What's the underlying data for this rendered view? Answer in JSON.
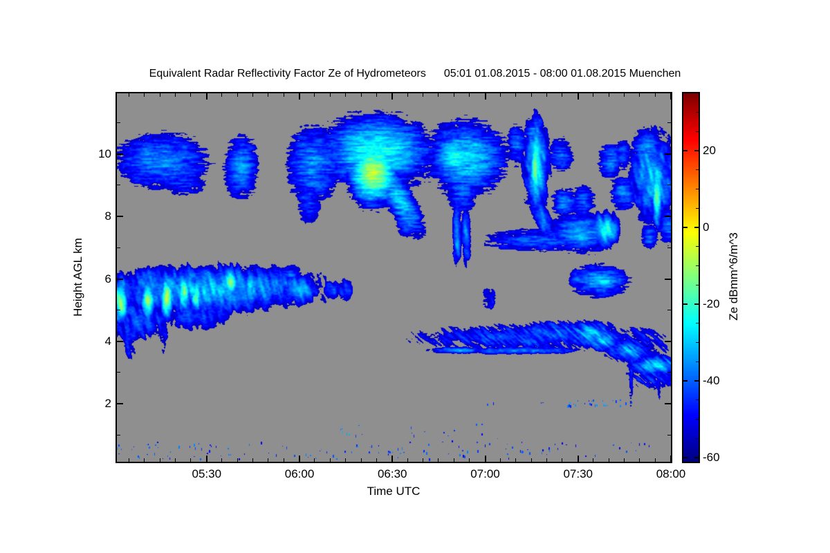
{
  "title": {
    "main": "Equivalent Radar Reflectivity Factor Ze of Hydrometeors",
    "range": "05:01 01.08.2015 - 08:00 01.08.2015 Muenchen"
  },
  "axes": {
    "x": {
      "label": "Time UTC",
      "start_minutes_after_0500": 1,
      "end_minutes_after_0500": 180,
      "major_ticks": [
        {
          "t": 30,
          "label": "05:30"
        },
        {
          "t": 60,
          "label": "06:00"
        },
        {
          "t": 90,
          "label": "06:30"
        },
        {
          "t": 120,
          "label": "07:00"
        },
        {
          "t": 150,
          "label": "07:30"
        },
        {
          "t": 180,
          "label": "08:00"
        }
      ],
      "minor_step_minutes": 5
    },
    "y": {
      "label": "Height AGL km",
      "min_km": 0.15,
      "max_km": 11.95,
      "major_ticks": [
        {
          "h": 2,
          "label": "2"
        },
        {
          "h": 4,
          "label": "4"
        },
        {
          "h": 6,
          "label": "6"
        },
        {
          "h": 8,
          "label": "8"
        },
        {
          "h": 10,
          "label": "10"
        }
      ],
      "minor_ticks_km": [
        1,
        3,
        5,
        7,
        9,
        11
      ]
    }
  },
  "colorbar": {
    "label": "Ze dBmm^6/m^3",
    "min": -61,
    "max": 35,
    "colormap": "jet",
    "major_ticks": [
      {
        "v": 20,
        "label": "20"
      },
      {
        "v": 0,
        "label": "0"
      },
      {
        "v": -20,
        "label": "-20"
      },
      {
        "v": -40,
        "label": "-40"
      },
      {
        "v": -60,
        "label": "-60"
      }
    ],
    "minor_step": 5
  },
  "colors": {
    "page_background": "#ffffff",
    "nodata_gray": "#8f8f8f",
    "axis_black": "#000000"
  },
  "chart_data": {
    "type": "heatmap",
    "title": "Equivalent Radar Reflectivity Factor Ze of Hydrometeors",
    "xlabel": "Time UTC",
    "ylabel": "Height AGL km",
    "value_label": "Ze dBmm^6/m^3",
    "x_range_minutes_after_0500": [
      1,
      180
    ],
    "y_range_km": [
      0.15,
      11.95
    ],
    "value_range_dB": [
      -61,
      35
    ],
    "blob_schema": "[t_minutes_after_0500, height_km, rx_minutes, ry_km, core_dB, texture(c=cirrus,v=vertical-streak,s=slant-streak,f=fine), edge_dB(optional,-55), shear(optional,0)]",
    "blobs": [
      [
        15.5,
        9.8,
        13,
        0.75,
        -35,
        "c"
      ],
      [
        22,
        9.25,
        6.5,
        0.5,
        -45,
        "c"
      ],
      [
        3,
        9.55,
        1.2,
        0.15,
        -48,
        "f"
      ],
      [
        41,
        9.6,
        4.7,
        0.85,
        -34,
        "c"
      ],
      [
        64.5,
        9.7,
        7.5,
        1.05,
        -36,
        "c"
      ],
      [
        63,
        8.6,
        3.2,
        0.7,
        -44,
        "c"
      ],
      [
        85,
        10.1,
        15.5,
        1.0,
        -22,
        "c",
        -52
      ],
      [
        84,
        9.4,
        8,
        1.0,
        -7,
        "c"
      ],
      [
        92.5,
        8.5,
        4.5,
        1.0,
        -28,
        "c",
        -55,
        0.5
      ],
      [
        94.5,
        7.8,
        2.6,
        0.4,
        -40,
        "c"
      ],
      [
        114,
        9.9,
        11.5,
        1.05,
        -28,
        "c"
      ],
      [
        110,
        9.95,
        6,
        0.65,
        -22,
        "c"
      ],
      [
        112.5,
        8.8,
        4,
        0.6,
        -40,
        "c"
      ],
      [
        130,
        10.3,
        2.6,
        0.55,
        -40,
        "c"
      ],
      [
        136.5,
        9.7,
        3.8,
        1.4,
        -26,
        "v"
      ],
      [
        136,
        9.5,
        1.6,
        1.3,
        -16,
        "v"
      ],
      [
        138.5,
        7.95,
        2.6,
        0.75,
        -35,
        "v",
        -55,
        0.4
      ],
      [
        135.5,
        10.65,
        2.6,
        0.4,
        -36,
        "c"
      ],
      [
        144.5,
        10.0,
        3.2,
        0.45,
        -42,
        "c"
      ],
      [
        145.5,
        8.45,
        3.4,
        0.45,
        -37,
        "c"
      ],
      [
        151.5,
        8.5,
        3.2,
        0.4,
        -41,
        "c"
      ],
      [
        160.5,
        9.8,
        3.4,
        0.5,
        -38,
        "c"
      ],
      [
        164.5,
        10.0,
        2.2,
        0.4,
        -42,
        "c"
      ],
      [
        174,
        9.3,
        6.5,
        1.3,
        -30,
        "v"
      ],
      [
        175.5,
        8.7,
        1.8,
        1.0,
        -19,
        "v"
      ],
      [
        172,
        10.25,
        4,
        0.5,
        -35,
        "c"
      ],
      [
        164.5,
        8.75,
        3.4,
        0.5,
        -37,
        "c"
      ],
      [
        179,
        7.7,
        2.6,
        0.5,
        -38,
        "c"
      ],
      [
        110.8,
        7.5,
        1.3,
        0.9,
        -33,
        "v"
      ],
      [
        113.8,
        7.45,
        1.3,
        0.85,
        -35,
        "v"
      ],
      [
        137,
        7.25,
        14,
        0.3,
        -41,
        "c"
      ],
      [
        151,
        7.5,
        9,
        0.55,
        -33,
        "c"
      ],
      [
        158.5,
        7.6,
        4.6,
        0.5,
        -22,
        "v"
      ],
      [
        173,
        7.4,
        2.2,
        0.38,
        -40,
        "c"
      ],
      [
        121,
        5.4,
        2,
        0.28,
        -46,
        "v"
      ],
      [
        157,
        5.95,
        8,
        0.45,
        -34,
        "c"
      ],
      [
        158.5,
        5.95,
        4,
        0.32,
        -28,
        "c"
      ],
      [
        149.5,
        6.05,
        2,
        0.3,
        -42,
        "c"
      ],
      [
        132,
        4.15,
        30,
        0.34,
        -43,
        "s",
        -56
      ],
      [
        154,
        4.25,
        7,
        0.38,
        -31,
        "s"
      ],
      [
        143,
        4.3,
        12,
        0.3,
        -40,
        "s"
      ],
      [
        158,
        4.05,
        5,
        0.3,
        -28,
        "s"
      ],
      [
        166,
        3.7,
        6,
        0.3,
        -32,
        "s",
        -55,
        0.5
      ],
      [
        175,
        3.25,
        7.5,
        0.28,
        -28,
        "s"
      ],
      [
        175,
        3.0,
        7,
        0.4,
        -46,
        "s"
      ],
      [
        168,
        3.9,
        9,
        0.45,
        -47,
        "s"
      ],
      [
        130,
        3.72,
        19,
        0.1,
        -36,
        "f"
      ],
      [
        111,
        3.73,
        8,
        0.1,
        -33,
        "f"
      ],
      [
        167,
        2.9,
        0.6,
        0.8,
        -48,
        "v"
      ],
      [
        176,
        2.9,
        0.5,
        0.7,
        -49,
        "v"
      ],
      [
        30,
        5.7,
        32,
        0.65,
        -30,
        "v",
        -54
      ],
      [
        2.3,
        5.3,
        2.2,
        0.75,
        -12,
        "v"
      ],
      [
        11,
        5.35,
        2.2,
        0.65,
        -13,
        "v"
      ],
      [
        17,
        5.4,
        2.0,
        0.65,
        -11,
        "v"
      ],
      [
        22.5,
        5.55,
        1.8,
        0.6,
        -14,
        "v"
      ],
      [
        26.5,
        5.5,
        1.6,
        0.55,
        -18,
        "v"
      ],
      [
        37.5,
        5.9,
        2.2,
        0.5,
        -14,
        "v"
      ],
      [
        44,
        5.7,
        2,
        0.5,
        -26,
        "v"
      ],
      [
        8,
        4.7,
        9,
        0.55,
        -43,
        "v"
      ],
      [
        27,
        4.9,
        8,
        0.45,
        -45,
        "v"
      ],
      [
        4.5,
        4.15,
        1.6,
        0.6,
        -44,
        "v",
        -55,
        0.15
      ],
      [
        16,
        4.5,
        1.1,
        0.7,
        -47,
        "v"
      ],
      [
        52,
        5.85,
        8,
        0.45,
        -38,
        "v"
      ],
      [
        60,
        5.7,
        5,
        0.45,
        -33,
        "v"
      ],
      [
        57,
        6.2,
        3,
        0.25,
        -42,
        "c"
      ],
      [
        70.5,
        5.65,
        2.1,
        0.25,
        -44,
        "v"
      ],
      [
        74.5,
        5.65,
        2.0,
        0.3,
        -44,
        "v"
      ]
    ],
    "speckle_schema": "[t0,t1,h0_km,h1_km,count,mean_dB,spread_dB]",
    "speckles": [
      [
        146,
        165,
        1.95,
        2.15,
        26,
        -40,
        9
      ],
      [
        119,
        123,
        1.95,
        2.1,
        2,
        -45,
        5
      ],
      [
        137,
        139,
        1.95,
        2.1,
        2,
        -45,
        5
      ],
      [
        164,
        167,
        1.95,
        2.1,
        2,
        -42,
        5
      ],
      [
        117,
        119,
        1.25,
        1.4,
        2,
        -45,
        5
      ],
      [
        73,
        76,
        1.0,
        1.4,
        8,
        -36,
        6
      ],
      [
        78,
        84,
        0.6,
        1.35,
        5,
        -44,
        6
      ],
      [
        94,
        103,
        0.55,
        1.3,
        5,
        -44,
        6
      ],
      [
        105,
        125,
        0.5,
        1.35,
        6,
        -45,
        6
      ],
      [
        1,
        30,
        0.25,
        0.8,
        28,
        -44,
        8
      ],
      [
        30,
        60,
        0.25,
        0.8,
        18,
        -45,
        8
      ],
      [
        60,
        95,
        0.25,
        0.85,
        26,
        -43,
        8
      ],
      [
        95,
        130,
        0.25,
        0.8,
        22,
        -44,
        8
      ],
      [
        130,
        160,
        0.3,
        0.8,
        18,
        -45,
        8
      ],
      [
        160,
        173,
        0.35,
        0.8,
        8,
        -46,
        7
      ]
    ]
  }
}
